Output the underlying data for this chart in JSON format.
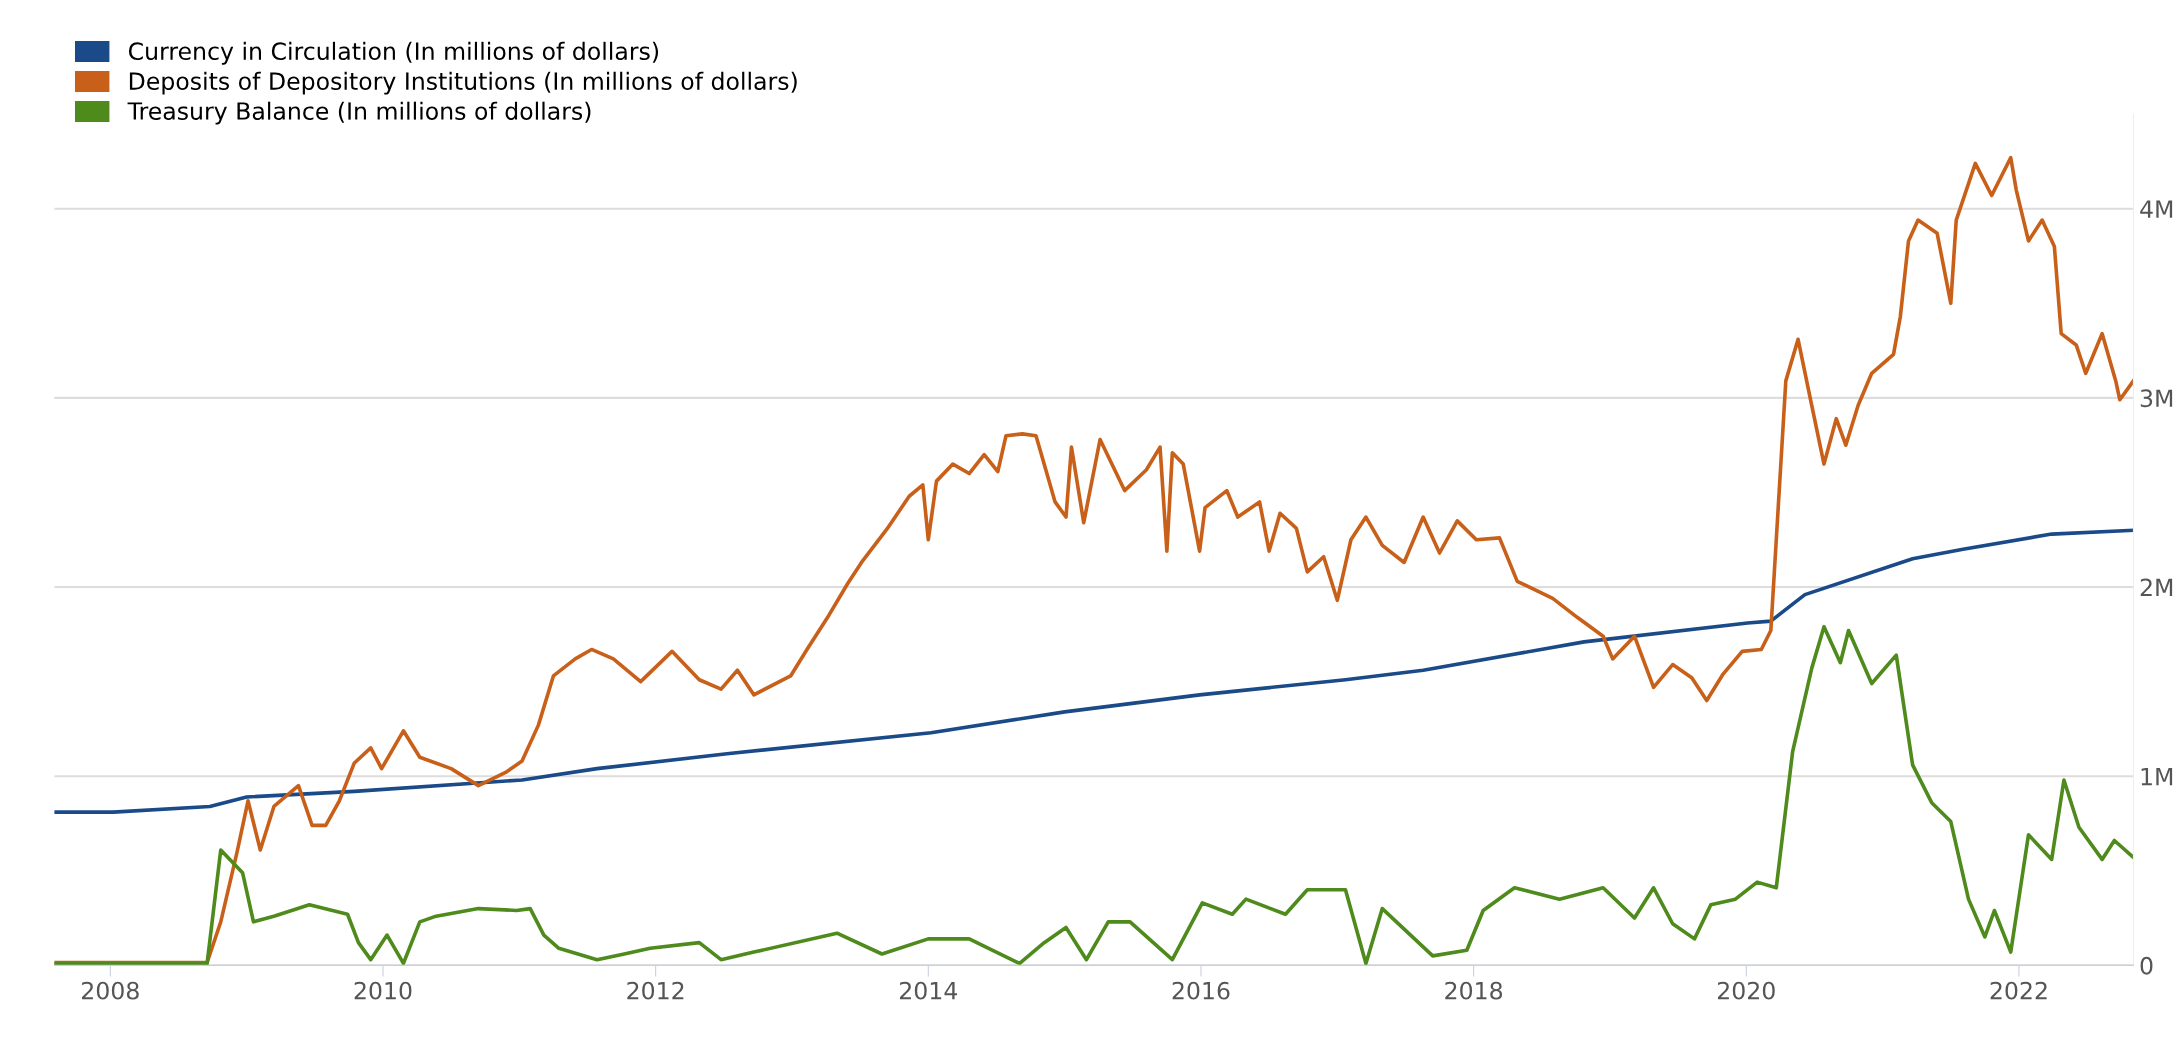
{
  "chart_data": {
    "type": "line",
    "legend": "top left",
    "grid": "y",
    "marker": "none",
    "line_style": "solid",
    "xlim": [
      2007.59,
      2022.84
    ],
    "xticks": [
      2008,
      2010,
      2012,
      2014,
      2016,
      2018,
      2020,
      2022
    ],
    "ylim": [
      0,
      4500000
    ],
    "yticks": [
      0,
      {
        "value": 1000000,
        "label": "1M"
      },
      {
        "value": 2000000,
        "label": "2M"
      },
      {
        "value": 3000000,
        "label": "3M"
      },
      {
        "value": 4000000,
        "label": "4M"
      }
    ],
    "series": [
      {
        "name": "Currency in Circulation (In millions of dollars)",
        "color": "#1a4a88",
        "x": [
          2007.59,
          2008.02,
          2008.73,
          2009.0,
          2009.79,
          2011.02,
          2011.57,
          2012.54,
          2014.02,
          2015.0,
          2015.99,
          2017.06,
          2017.63,
          2018.81,
          2020.01,
          2020.18,
          2020.43,
          2021.22,
          2021.59,
          2022.24,
          2022.84
        ],
        "values": [
          810000,
          810000,
          840000,
          890000,
          920000,
          980000,
          1040000,
          1120000,
          1230000,
          1340000,
          1430000,
          1510000,
          1560000,
          1710000,
          1810000,
          1820000,
          1960000,
          2150000,
          2200000,
          2280000,
          2300000
        ]
      },
      {
        "name": "Deposits of Depository Institutions (In millions of dollars)",
        "color": "#c8601a",
        "x": [
          2007.59,
          2008.71,
          2008.81,
          2008.93,
          2009.01,
          2009.1,
          2009.2,
          2009.38,
          2009.48,
          2009.58,
          2009.68,
          2009.79,
          2009.91,
          2009.99,
          2010.15,
          2010.27,
          2010.5,
          2010.7,
          2010.9,
          2011.02,
          2011.14,
          2011.25,
          2011.41,
          2011.53,
          2011.69,
          2011.89,
          2012.12,
          2012.32,
          2012.48,
          2012.6,
          2012.72,
          2012.99,
          2013.11,
          2013.27,
          2013.41,
          2013.51,
          2013.7,
          2013.86,
          2013.96,
          2014.0,
          2014.06,
          2014.18,
          2014.3,
          2014.41,
          2014.51,
          2014.57,
          2014.69,
          2014.79,
          2014.93,
          2015.01,
          2015.05,
          2015.14,
          2015.26,
          2015.44,
          2015.6,
          2015.7,
          2015.75,
          2015.79,
          2015.87,
          2015.99,
          2016.03,
          2016.19,
          2016.27,
          2016.43,
          2016.5,
          2016.58,
          2016.7,
          2016.78,
          2016.9,
          2017.0,
          2017.1,
          2017.21,
          2017.33,
          2017.49,
          2017.63,
          2017.75,
          2017.88,
          2018.02,
          2018.19,
          2018.32,
          2018.58,
          2018.76,
          2018.95,
          2019.02,
          2019.18,
          2019.32,
          2019.46,
          2019.6,
          2019.71,
          2019.83,
          2019.97,
          2020.11,
          2020.18,
          2020.22,
          2020.29,
          2020.38,
          2020.48,
          2020.57,
          2020.66,
          2020.73,
          2020.82,
          2020.92,
          2021.08,
          2021.13,
          2021.19,
          2021.26,
          2021.4,
          2021.5,
          2021.54,
          2021.68,
          2021.8,
          2021.94,
          2021.98,
          2022.07,
          2022.17,
          2022.26,
          2022.31,
          2022.42,
          2022.49,
          2022.61,
          2022.71,
          2022.74,
          2022.84
        ],
        "values": [
          15000,
          15000,
          230000,
          600000,
          870000,
          610000,
          840000,
          950000,
          740000,
          740000,
          870000,
          1070000,
          1150000,
          1040000,
          1240000,
          1100000,
          1040000,
          950000,
          1020000,
          1080000,
          1270000,
          1530000,
          1620000,
          1670000,
          1620000,
          1500000,
          1660000,
          1510000,
          1460000,
          1560000,
          1430000,
          1530000,
          1670000,
          1850000,
          2020000,
          2130000,
          2310000,
          2480000,
          2540000,
          2250000,
          2560000,
          2650000,
          2600000,
          2700000,
          2610000,
          2800000,
          2810000,
          2800000,
          2450000,
          2370000,
          2740000,
          2340000,
          2780000,
          2510000,
          2620000,
          2740000,
          2190000,
          2710000,
          2650000,
          2190000,
          2420000,
          2510000,
          2370000,
          2450000,
          2190000,
          2390000,
          2310000,
          2080000,
          2160000,
          1930000,
          2250000,
          2370000,
          2220000,
          2130000,
          2370000,
          2180000,
          2350000,
          2250000,
          2260000,
          2030000,
          1940000,
          1840000,
          1740000,
          1620000,
          1740000,
          1470000,
          1590000,
          1520000,
          1400000,
          1540000,
          1660000,
          1670000,
          1770000,
          2250000,
          3090000,
          3310000,
          2960000,
          2650000,
          2890000,
          2750000,
          2960000,
          3130000,
          3230000,
          3430000,
          3830000,
          3940000,
          3870000,
          3500000,
          3940000,
          4240000,
          4070000,
          4270000,
          4100000,
          3830000,
          3940000,
          3800000,
          3340000,
          3280000,
          3130000,
          3340000,
          3090000,
          2990000,
          3090000
        ]
      },
      {
        "name": "Treasury Balance (In millions of dollars)",
        "color": "#4f8a1c",
        "x": [
          2007.59,
          2008.71,
          2008.81,
          2008.97,
          2009.05,
          2009.2,
          2009.46,
          2009.74,
          2009.82,
          2009.91,
          2010.03,
          2010.15,
          2010.27,
          2010.39,
          2010.7,
          2010.98,
          2011.08,
          2011.18,
          2011.29,
          2011.57,
          2011.77,
          2011.96,
          2012.32,
          2012.48,
          2012.72,
          2013.33,
          2013.66,
          2014.0,
          2014.3,
          2014.67,
          2014.85,
          2015.01,
          2015.16,
          2015.32,
          2015.48,
          2015.79,
          2016.01,
          2016.23,
          2016.33,
          2016.62,
          2016.78,
          2017.06,
          2017.21,
          2017.33,
          2017.7,
          2017.95,
          2018.07,
          2018.3,
          2018.63,
          2018.95,
          2019.18,
          2019.32,
          2019.46,
          2019.62,
          2019.74,
          2019.92,
          2020.08,
          2020.22,
          2020.34,
          2020.48,
          2020.57,
          2020.69,
          2020.75,
          2020.92,
          2021.1,
          2021.22,
          2021.36,
          2021.5,
          2021.63,
          2021.75,
          2021.82,
          2021.94,
          2022.07,
          2022.24,
          2022.33,
          2022.44,
          2022.61,
          2022.7,
          2022.84
        ],
        "values": [
          10000,
          10000,
          610000,
          490000,
          230000,
          260000,
          320000,
          270000,
          120000,
          30000,
          160000,
          10000,
          230000,
          260000,
          300000,
          290000,
          300000,
          160000,
          90000,
          30000,
          60000,
          90000,
          120000,
          30000,
          70000,
          170000,
          60000,
          140000,
          140000,
          10000,
          120000,
          200000,
          30000,
          230000,
          230000,
          30000,
          330000,
          270000,
          350000,
          270000,
          400000,
          400000,
          10000,
          300000,
          50000,
          80000,
          290000,
          410000,
          350000,
          410000,
          250000,
          410000,
          220000,
          140000,
          320000,
          350000,
          440000,
          410000,
          1130000,
          1570000,
          1790000,
          1600000,
          1770000,
          1490000,
          1640000,
          1060000,
          860000,
          760000,
          350000,
          150000,
          290000,
          70000,
          690000,
          560000,
          980000,
          730000,
          560000,
          660000,
          570000
        ]
      }
    ]
  }
}
